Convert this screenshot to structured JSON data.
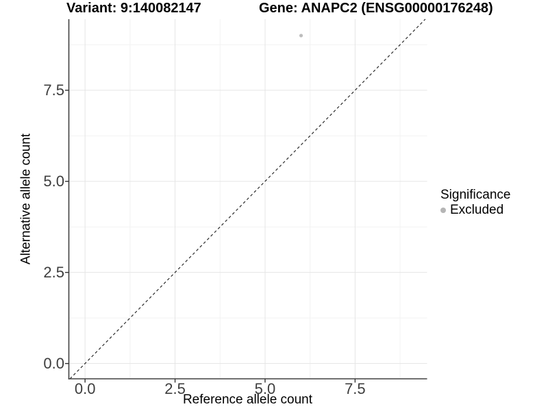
{
  "chart_data": {
    "type": "scatter",
    "title_left": "Variant: 9:140082147",
    "title_right": "Gene: ANAPC2 (ENSG00000176248)",
    "xlabel": "Reference allele count",
    "ylabel": "Alternative allele count",
    "xlim": [
      -0.45,
      9.5
    ],
    "ylim": [
      -0.42,
      9.45
    ],
    "x_ticks": {
      "values": [
        0,
        2.5,
        5,
        7.5
      ],
      "labels": [
        "0.0",
        "2.5",
        "5.0",
        "7.5"
      ]
    },
    "y_ticks": {
      "values": [
        0,
        2.5,
        5,
        7.5
      ],
      "labels": [
        "0.0",
        "2.5",
        "5.0",
        "7.5"
      ]
    },
    "x_minor": [
      1.25,
      3.75,
      6.25,
      8.75
    ],
    "y_minor": [
      1.25,
      3.75,
      6.25,
      8.75
    ],
    "grid": "major+minor",
    "series": [
      {
        "name": "Excluded",
        "color": "#bdbdbd",
        "point_radius": 2.6,
        "points": [
          [
            6,
            9
          ]
        ]
      }
    ],
    "abline": {
      "slope": 1,
      "intercept": 0,
      "style": "dashed",
      "color": "#2a2a2a"
    },
    "legend": {
      "title": "Significance",
      "position": "right",
      "items": [
        {
          "label": "Excluded",
          "color": "#b5b5b5"
        }
      ]
    }
  },
  "colors": {
    "background": "#ffffff",
    "grid_major": "#e5e5e5",
    "grid_minor": "#f2f2f2",
    "axis_line": "#404040",
    "tick_mark": "#333333",
    "tick_text": "#3d3d3d",
    "title_text": "#000000"
  }
}
